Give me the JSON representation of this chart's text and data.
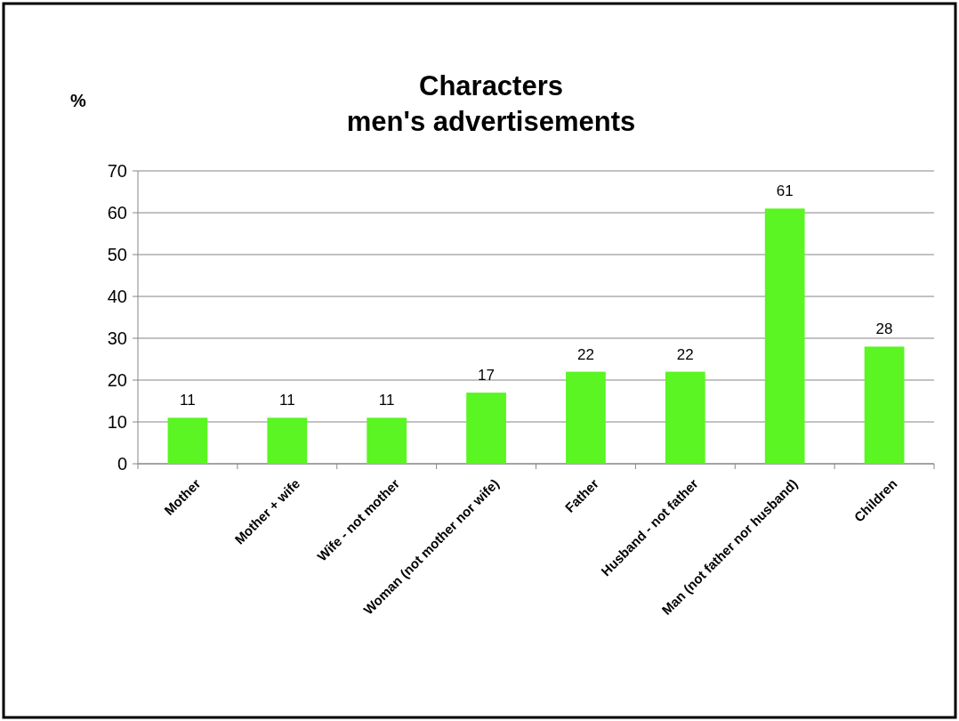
{
  "chart_data": {
    "type": "bar",
    "title": "Characters\nmen's advertisements",
    "ylabel": "%",
    "categories": [
      "Mother",
      "Mother + wife",
      "Wife - not mother",
      "Woman (not mother nor wife)",
      "Father",
      "Husband - not father",
      "Man (not father nor husband)",
      "Children"
    ],
    "values": [
      11,
      11,
      11,
      17,
      22,
      22,
      61,
      28
    ],
    "color": "#5af522",
    "ylim": [
      0,
      70
    ],
    "yticks": [
      0,
      10,
      20,
      30,
      40,
      50,
      60,
      70
    ],
    "grid": "y",
    "data_labels": true
  }
}
